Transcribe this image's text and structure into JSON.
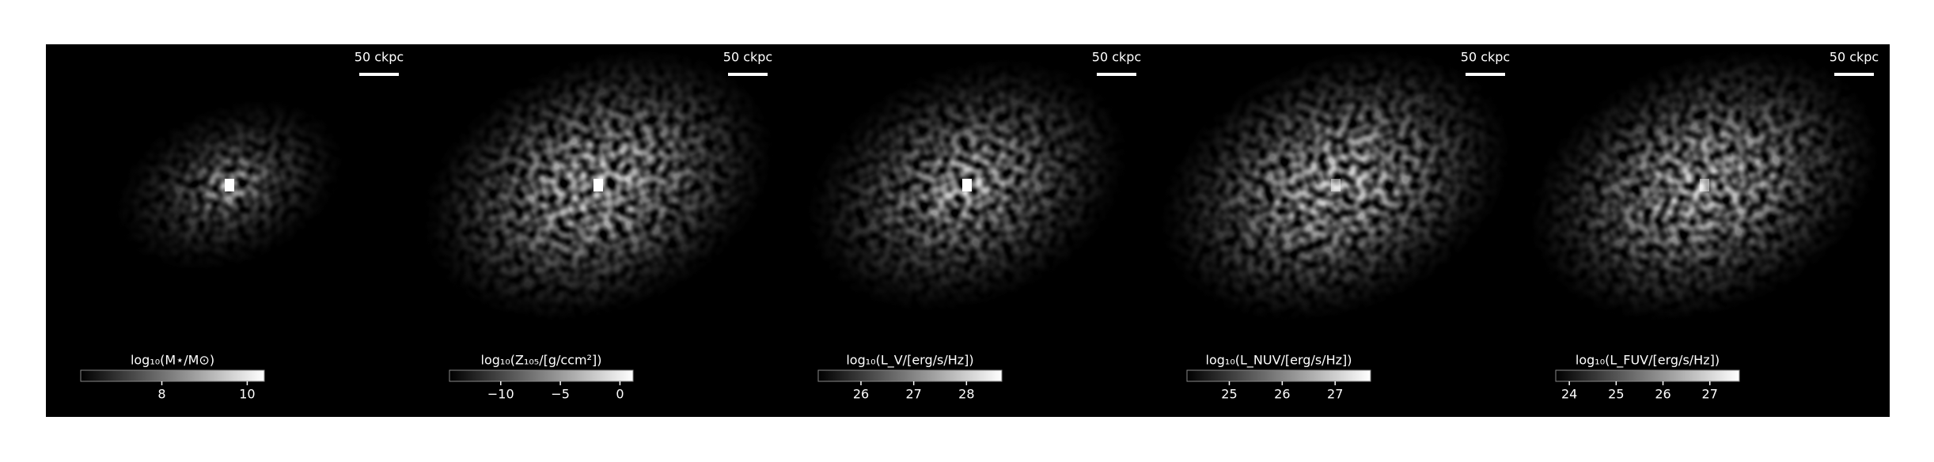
{
  "chart_data": [
    {
      "type": "heatmap",
      "cmap": "gray",
      "scale_bar": "50 ckpc",
      "colorbar": {
        "label": "log₁₀(M⋆/M⊙)",
        "clim": [
          6.1,
          10.4
        ],
        "ticks": [
          8,
          10
        ]
      }
    },
    {
      "type": "heatmap",
      "cmap": "gray",
      "scale_bar": "50 ckpc",
      "colorbar": {
        "label": "log₁₀(Z₁₀₅/[g/ccm²])",
        "clim": [
          -14.3,
          1.1
        ],
        "ticks": [
          {
            "value": -10,
            "label": "−10"
          },
          {
            "value": -5,
            "label": "−5"
          },
          0
        ]
      }
    },
    {
      "type": "heatmap",
      "cmap": "gray",
      "scale_bar": "50 ckpc",
      "colorbar": {
        "label": "log₁₀(L_V/[erg/s/Hz])",
        "clim": [
          25.19,
          28.67
        ],
        "ticks": [
          26,
          27,
          28
        ]
      }
    },
    {
      "type": "heatmap",
      "cmap": "gray",
      "scale_bar": "50 ckpc",
      "colorbar": {
        "label": "log₁₀(L_NUV/[erg/s/Hz])",
        "clim": [
          24.2,
          27.67
        ],
        "ticks": [
          25,
          26,
          27
        ]
      }
    },
    {
      "type": "heatmap",
      "cmap": "gray",
      "scale_bar": "50 ckpc",
      "colorbar": {
        "label": "log₁₀(L_FUV/[erg/s/Hz])",
        "clim": [
          23.71,
          27.63
        ],
        "ticks": [
          24,
          25,
          26,
          27
        ]
      }
    }
  ]
}
